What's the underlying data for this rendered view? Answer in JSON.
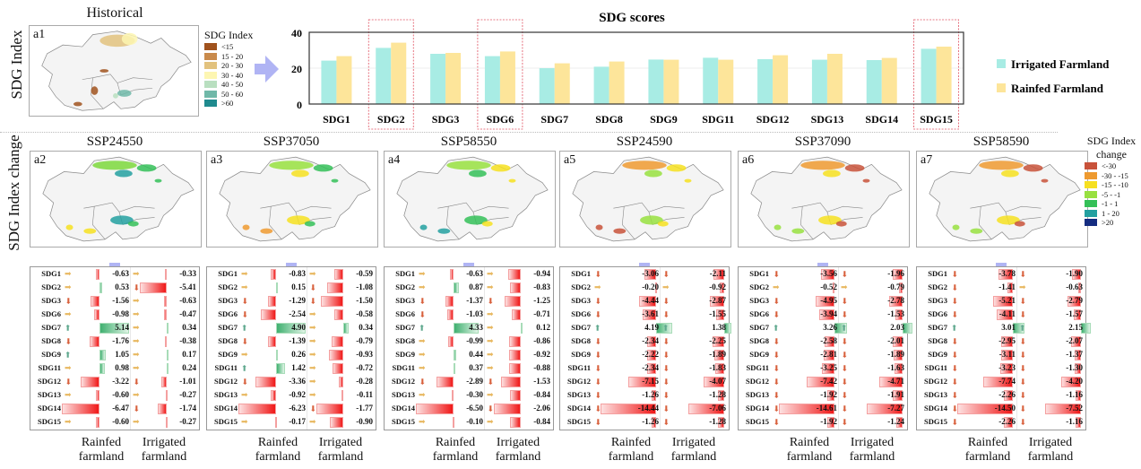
{
  "top_row_label": "SDG Index",
  "bottom_row_label": "SDG Index change",
  "historical": {
    "title": "Historical",
    "panel": "a1",
    "legend_title": "SDG Index",
    "legend": [
      {
        "label": "<15",
        "color": "#a0521d"
      },
      {
        "label": "15 - 20",
        "color": "#c98a4b"
      },
      {
        "label": "20 - 30",
        "color": "#e2c27e"
      },
      {
        "label": "30 - 40",
        "color": "#fdf6b2"
      },
      {
        "label": "40 - 50",
        "color": "#b9dfc0"
      },
      {
        "label": "50 - 60",
        "color": "#6fb8a8"
      },
      {
        "label": ">60",
        "color": "#1f8a8e"
      }
    ]
  },
  "change_legend": {
    "title_line1": "SDG Index",
    "title_line2": "change",
    "items": [
      {
        "label": "<-30",
        "color": "#c8523a"
      },
      {
        "label": "-30 - -15",
        "color": "#ee9a30"
      },
      {
        "label": "-15 - -10",
        "color": "#f6e020"
      },
      {
        "label": "-5 - -1",
        "color": "#98e040"
      },
      {
        "label": "-1 - 1",
        "color": "#34c058"
      },
      {
        "label": "1 - 20",
        "color": "#23a0a0"
      },
      {
        "label": ">20",
        "color": "#142c80"
      }
    ]
  },
  "chart_data": {
    "type": "bar",
    "title": "SDG scores",
    "categories": [
      "SDG1",
      "SDG2",
      "SDG3",
      "SDG6",
      "SDG7",
      "SDG8",
      "SDG9",
      "SDG11",
      "SDG12",
      "SDG13",
      "SDG14",
      "SDG15"
    ],
    "highlighted": [
      "SDG2",
      "SDG6",
      "SDG15"
    ],
    "series": [
      {
        "name": "Irrigated Farmland",
        "color": "#a8ece4",
        "values": [
          24.2,
          31.3,
          28.0,
          26.7,
          20.0,
          20.8,
          24.8,
          25.8,
          25.0,
          24.7,
          24.5,
          30.8
        ]
      },
      {
        "name": "Rainfed Farmland",
        "color": "#fde59a",
        "values": [
          26.7,
          34.2,
          28.5,
          29.3,
          22.7,
          23.7,
          24.7,
          24.7,
          27.2,
          28.0,
          25.7,
          32.0
        ]
      }
    ],
    "ylim": [
      0,
      40
    ],
    "yticks": [
      "0",
      "20",
      "40"
    ],
    "grid": true,
    "legend_position": "right"
  },
  "scenarios": [
    {
      "title": "SSP24550",
      "panel": "a2",
      "map_colors": [
        "#7cd83c",
        "#34c058",
        "#23a0a0",
        "#f6e020"
      ],
      "rainfed": [
        -0.63,
        0.53,
        -1.56,
        -0.98,
        5.14,
        -1.76,
        1.05,
        0.98,
        -3.22,
        -0.6,
        -6.47,
        -0.6
      ],
      "irrigated": [
        -0.33,
        -5.41,
        -0.63,
        -0.47,
        0.34,
        -0.38,
        0.17,
        0.24,
        -1.01,
        -0.27,
        -1.74,
        -0.27
      ]
    },
    {
      "title": "SSP37050",
      "panel": "a3",
      "map_colors": [
        "#98e040",
        "#34c058",
        "#f6e020",
        "#ee9a30"
      ],
      "rainfed": [
        -0.83,
        0.15,
        -1.29,
        -2.54,
        4.9,
        -1.39,
        0.26,
        1.42,
        -3.36,
        -0.92,
        -6.23,
        -0.17
      ],
      "irrigated": [
        -0.59,
        -1.08,
        -1.5,
        -0.58,
        0.34,
        -0.79,
        -0.93,
        -0.72,
        -0.28,
        -0.11,
        -1.77,
        -0.9
      ]
    },
    {
      "title": "SSP58550",
      "panel": "a4",
      "map_colors": [
        "#98e040",
        "#f6e020",
        "#34c058",
        "#23a0a0"
      ],
      "rainfed": [
        -0.63,
        0.87,
        -1.37,
        -1.03,
        4.33,
        -0.99,
        0.44,
        0.37,
        -2.89,
        -0.3,
        -6.5,
        -0.1
      ],
      "irrigated": [
        -0.94,
        -0.83,
        -1.25,
        -0.71,
        0.12,
        -0.86,
        -0.92,
        -0.88,
        -1.53,
        -0.84,
        -2.06,
        -0.84
      ]
    },
    {
      "title": "SSP24590",
      "panel": "a5",
      "map_colors": [
        "#ee9a30",
        "#f6e020",
        "#98e040",
        "#c8523a"
      ],
      "rainfed": [
        -3.06,
        -0.2,
        -4.44,
        -3.61,
        4.19,
        -2.34,
        -2.22,
        -2.34,
        -7.15,
        -1.26,
        -14.44,
        -1.26
      ],
      "irrigated": [
        -2.11,
        -0.92,
        -2.87,
        -1.55,
        1.38,
        -2.25,
        -1.89,
        -1.83,
        -4.07,
        -1.28,
        -7.06,
        -1.28
      ]
    },
    {
      "title": "SSP37090",
      "panel": "a6",
      "map_colors": [
        "#ee9a30",
        "#c8523a",
        "#f6e020",
        "#98e040"
      ],
      "rainfed": [
        -3.56,
        -0.52,
        -4.95,
        -3.94,
        3.26,
        -2.58,
        -2.81,
        -3.25,
        -7.42,
        -1.92,
        -14.61,
        -1.92
      ],
      "irrigated": [
        -1.96,
        -0.79,
        -2.78,
        -1.53,
        2.03,
        -2.01,
        -1.89,
        -1.63,
        -4.71,
        -1.91,
        -7.27,
        -1.24
      ]
    },
    {
      "title": "SSP58590",
      "panel": "a7",
      "map_colors": [
        "#ee9a30",
        "#c8523a",
        "#f6e020",
        "#98e040"
      ],
      "rainfed": [
        -3.78,
        -1.41,
        -5.21,
        -4.11,
        3.01,
        -2.95,
        -3.11,
        -3.23,
        -7.74,
        -2.26,
        -14.5,
        -2.26
      ],
      "irrigated": [
        -1.9,
        -0.63,
        -2.79,
        -1.57,
        2.15,
        -2.07,
        -1.37,
        -1.3,
        -4.2,
        -1.16,
        -7.52,
        -1.16
      ]
    }
  ],
  "table_rows": [
    "SDG1",
    "SDG2",
    "SDG3",
    "SDG6",
    "SDG7",
    "SDG8",
    "SDG9",
    "SDG11",
    "SDG12",
    "SDG13",
    "SDG14",
    "SDG15"
  ],
  "trend_icons": {
    "up": {
      "name": "up-arrow-icon",
      "color": "#5fa88e"
    },
    "down": {
      "name": "down-arrow-icon",
      "color": "#d8603c"
    },
    "flat": {
      "name": "right-arrow-icon",
      "color": "#e8b860"
    }
  },
  "column_labels": {
    "rainfed_1": "Rainfed",
    "rainfed_2": "farmland",
    "irrigated_1": "Irrigated",
    "irrigated_2": "farmland"
  },
  "arrow_color": "#b0b4f4"
}
